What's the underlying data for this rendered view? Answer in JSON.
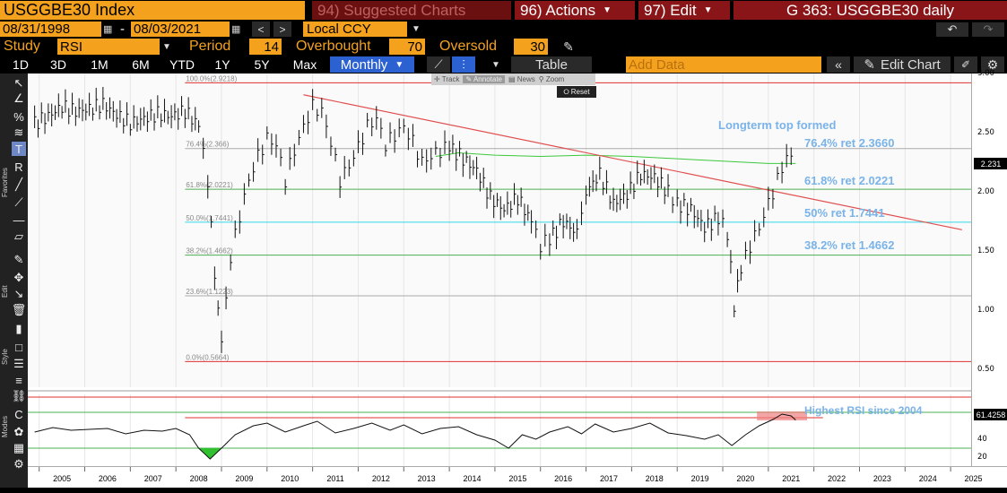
{
  "header": {
    "ticker": "USGGBE30 Index",
    "suggested": "94) Suggested Charts",
    "actions": "96) Actions",
    "edit": "97) Edit",
    "title": "G 363: USGGBE30 daily",
    "date_start": "08/31/1998",
    "date_sep": "-",
    "date_end": "08/03/2021",
    "currency": "Local CCY"
  },
  "study": {
    "label": "Study",
    "name": "RSI",
    "period_label": "Period",
    "period": "14",
    "overbought_label": "Overbought",
    "overbought": "70",
    "oversold_label": "Oversold",
    "oversold": "30"
  },
  "toolbar": {
    "timeframes": [
      "1D",
      "3D",
      "1M",
      "6M",
      "YTD",
      "1Y",
      "5Y",
      "Max"
    ],
    "frequency": "Monthly",
    "table": "Table",
    "add_data": "Add Data",
    "edit_chart": "Edit Chart"
  },
  "popup": {
    "track": "Track",
    "annotate": "Annotate",
    "news": "News",
    "zoom": "Zoom",
    "reset": "Reset"
  },
  "sidebar": {
    "favorites": "Favorites",
    "edit": "Edit",
    "style": "Style",
    "modes": "Modes"
  },
  "colors": {
    "amber": "#f4a21e",
    "blue_text": "#7ab3e8",
    "trend": "#e05050",
    "ma": "#3cc83c",
    "fib_green": "#4caf50",
    "fib_cyan": "#30d8e8",
    "fib_red": "#e03030",
    "fib_gray": "#aaaaaa"
  },
  "annotations": {
    "top": "Longterm top formed",
    "r764": "76.4% ret 2.3660",
    "r618": "61.8% ret 2.0221",
    "r50": "50% ret 1.7441",
    "r382": "38.2% ret 1.4662",
    "rsi": "Highest RSI since 2004"
  },
  "fib_labels": {
    "f100": "100.0%(2.9218)",
    "f764": "76.4%(2.366)",
    "f618": "61.8%(2.0221)",
    "f50": "50.0%(1.7441)",
    "f382": "38.2%(1.4662)",
    "f236": "23.6%(1.1223)",
    "f0": "0.0%(0.5664)"
  },
  "chart_data": [
    {
      "type": "bar",
      "title": "USGGBE30 Index",
      "frequency": "Monthly",
      "ylim": [
        0.35,
        3.0
      ],
      "y_ticks": [
        "3.00",
        "2.50",
        "2.00",
        "1.50",
        "1.00",
        "0.50"
      ],
      "last_price": "2.231",
      "x_ticks": [
        "2005",
        "2006",
        "2007",
        "2008",
        "2009",
        "2010",
        "2011",
        "2012",
        "2013",
        "2014",
        "2015",
        "2016",
        "2017",
        "2018",
        "2019",
        "2020",
        "2021",
        "2022",
        "2023",
        "2024",
        "2025"
      ],
      "fib_levels": [
        {
          "pct": "100.0%",
          "value": 2.9218
        },
        {
          "pct": "76.4%",
          "value": 2.366
        },
        {
          "pct": "61.8%",
          "value": 2.0221
        },
        {
          "pct": "50.0%",
          "value": 1.7441
        },
        {
          "pct": "38.2%",
          "value": 1.4662
        },
        {
          "pct": "23.6%",
          "value": 1.1223
        },
        {
          "pct": "0.0%",
          "value": 0.5664
        }
      ],
      "trendline": [
        {
          "x": 2010.8,
          "y": 2.82
        },
        {
          "x": 2025.25,
          "y": 1.68
        }
      ],
      "series": [
        {
          "values": [
            [
              2004.9,
              2.58
            ],
            [
              2005.2,
              2.64
            ],
            [
              2005.5,
              2.72
            ],
            [
              2005.8,
              2.68
            ],
            [
              2006.1,
              2.7
            ],
            [
              2006.4,
              2.74
            ],
            [
              2006.7,
              2.65
            ],
            [
              2007.0,
              2.58
            ],
            [
              2007.3,
              2.62
            ],
            [
              2007.6,
              2.66
            ],
            [
              2007.9,
              2.64
            ],
            [
              2008.2,
              2.68
            ],
            [
              2008.5,
              2.56
            ],
            [
              2008.7,
              2.1
            ],
            [
              2008.85,
              1.3
            ],
            [
              2009.0,
              0.72
            ],
            [
              2009.2,
              1.45
            ],
            [
              2009.4,
              1.8
            ],
            [
              2009.6,
              2.1
            ],
            [
              2009.8,
              2.3
            ],
            [
              2010.0,
              2.45
            ],
            [
              2010.2,
              2.4
            ],
            [
              2010.4,
              2.1
            ],
            [
              2010.6,
              2.35
            ],
            [
              2010.8,
              2.55
            ],
            [
              2011.0,
              2.72
            ],
            [
              2011.2,
              2.68
            ],
            [
              2011.4,
              2.42
            ],
            [
              2011.6,
              2.1
            ],
            [
              2011.8,
              2.22
            ],
            [
              2012.0,
              2.38
            ],
            [
              2012.2,
              2.55
            ],
            [
              2012.4,
              2.62
            ],
            [
              2012.6,
              2.4
            ],
            [
              2012.8,
              2.48
            ],
            [
              2013.0,
              2.55
            ],
            [
              2013.2,
              2.42
            ],
            [
              2013.4,
              2.25
            ],
            [
              2013.6,
              2.3
            ],
            [
              2013.8,
              2.35
            ],
            [
              2014.0,
              2.38
            ],
            [
              2014.3,
              2.28
            ],
            [
              2014.6,
              2.18
            ],
            [
              2014.9,
              1.95
            ],
            [
              2015.2,
              1.85
            ],
            [
              2015.5,
              1.95
            ],
            [
              2015.8,
              1.75
            ],
            [
              2016.0,
              1.55
            ],
            [
              2016.2,
              1.6
            ],
            [
              2016.5,
              1.75
            ],
            [
              2016.8,
              1.65
            ],
            [
              2017.0,
              2.0
            ],
            [
              2017.3,
              2.15
            ],
            [
              2017.6,
              1.9
            ],
            [
              2017.9,
              1.98
            ],
            [
              2018.2,
              2.15
            ],
            [
              2018.5,
              2.12
            ],
            [
              2018.8,
              2.0
            ],
            [
              2019.0,
              1.9
            ],
            [
              2019.3,
              1.85
            ],
            [
              2019.6,
              1.7
            ],
            [
              2019.9,
              1.78
            ],
            [
              2020.1,
              1.65
            ],
            [
              2020.25,
              1.05
            ],
            [
              2020.4,
              1.35
            ],
            [
              2020.6,
              1.55
            ],
            [
              2020.8,
              1.7
            ],
            [
              2021.0,
              1.9
            ],
            [
              2021.2,
              2.1
            ],
            [
              2021.4,
              2.3
            ],
            [
              2021.6,
              2.25
            ]
          ]
        }
      ],
      "moving_average": [
        [
          2013.7,
          2.3
        ],
        [
          2014.2,
          2.33
        ],
        [
          2015.0,
          2.31
        ],
        [
          2016.0,
          2.3
        ],
        [
          2017.0,
          2.31
        ],
        [
          2018.0,
          2.3
        ],
        [
          2019.0,
          2.28
        ],
        [
          2020.0,
          2.26
        ],
        [
          2021.0,
          2.24
        ],
        [
          2021.6,
          2.24
        ]
      ]
    },
    {
      "type": "line",
      "title": "RSI",
      "ylim": [
        10,
        90
      ],
      "y_ticks": [
        "40",
        "20"
      ],
      "last_value": "61.4258",
      "overbought": 70,
      "oversold": 30,
      "series": [
        {
          "values": [
            [
              2004.9,
              48
            ],
            [
              2005.3,
              53
            ],
            [
              2005.7,
              50
            ],
            [
              2006.1,
              51
            ],
            [
              2006.5,
              52
            ],
            [
              2006.9,
              46
            ],
            [
              2007.3,
              50
            ],
            [
              2007.7,
              49
            ],
            [
              2008.0,
              52
            ],
            [
              2008.3,
              45
            ],
            [
              2008.5,
              30
            ],
            [
              2008.75,
              18
            ],
            [
              2009.0,
              30
            ],
            [
              2009.3,
              45
            ],
            [
              2009.7,
              55
            ],
            [
              2010.0,
              58
            ],
            [
              2010.4,
              48
            ],
            [
              2010.8,
              55
            ],
            [
              2011.1,
              60
            ],
            [
              2011.5,
              47
            ],
            [
              2011.9,
              52
            ],
            [
              2012.3,
              58
            ],
            [
              2012.7,
              50
            ],
            [
              2013.0,
              56
            ],
            [
              2013.4,
              46
            ],
            [
              2013.8,
              52
            ],
            [
              2014.2,
              54
            ],
            [
              2014.6,
              45
            ],
            [
              2015.0,
              39
            ],
            [
              2015.3,
              30
            ],
            [
              2015.6,
              45
            ],
            [
              2015.9,
              40
            ],
            [
              2016.2,
              48
            ],
            [
              2016.6,
              54
            ],
            [
              2016.9,
              46
            ],
            [
              2017.2,
              57
            ],
            [
              2017.6,
              48
            ],
            [
              2018.0,
              52
            ],
            [
              2018.4,
              58
            ],
            [
              2018.8,
              47
            ],
            [
              2019.2,
              44
            ],
            [
              2019.6,
              40
            ],
            [
              2019.9,
              45
            ],
            [
              2020.2,
              33
            ],
            [
              2020.5,
              45
            ],
            [
              2020.8,
              55
            ],
            [
              2021.1,
              62
            ],
            [
              2021.3,
              68
            ],
            [
              2021.5,
              66
            ],
            [
              2021.6,
              61.4
            ]
          ]
        }
      ]
    }
  ]
}
